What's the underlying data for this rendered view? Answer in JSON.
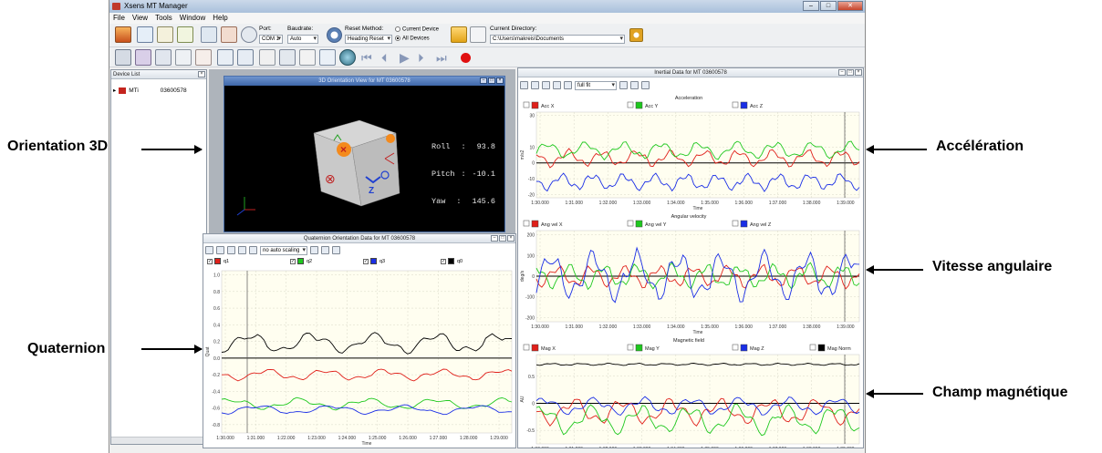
{
  "window": {
    "title": "Xsens MT Manager",
    "min": "–",
    "max": "□",
    "close": "✕"
  },
  "menu": [
    "File",
    "View",
    "Tools",
    "Window",
    "Help"
  ],
  "toolbar": {
    "port_label": "Port:",
    "port_value": "COM 1",
    "baud_label": "Baudrate:",
    "baud_value": "Auto",
    "reset_label": "Reset Method:",
    "reset_value": "Heading Reset",
    "radio_current": "Current Device",
    "radio_all": "All Devices",
    "dir_label": "Current Directory:",
    "dir_value": "C:\\Users\\makreis\\Documents"
  },
  "device_list": {
    "title": "Device List",
    "device_name": "MTi",
    "device_id": "03600578"
  },
  "orientation3d": {
    "title": "3D Orientation View for MT 03600578",
    "roll_label": "Roll",
    "roll": "93.8",
    "pitch_label": "Pitch",
    "pitch": "-10.1",
    "yaw_label": "Yaw",
    "yaw": "145.6"
  },
  "quaternion": {
    "title": "Quaternion Orientation Data for MT 03600578",
    "scaling": "no auto scaling",
    "series": [
      "q1",
      "q2",
      "q3",
      "q0"
    ],
    "ylabel": "Quat",
    "xlabel": "Time",
    "yticks": [
      "1.0",
      "0.8",
      "0.6",
      "0.4",
      "0.2",
      "0.0",
      "-0.2",
      "-0.4",
      "-0.6",
      "-0.8"
    ],
    "xticks": [
      "1:30.000",
      "1:31.000",
      "1:22.000",
      "1:23.000",
      "1:24.000",
      "1:25.000",
      "1:26.000",
      "1:27.000",
      "1:28.000",
      "1:29.000"
    ]
  },
  "inertial": {
    "title": "Inertial Data for MT 03600578",
    "scaling": "full fit",
    "acc": {
      "section": "Acceleration",
      "series": [
        "Acc X",
        "Acc Y",
        "Acc Z"
      ],
      "ylabel": "m/s2",
      "yticks": [
        "10",
        "0",
        "-10",
        "-20"
      ],
      "top_tick": "30"
    },
    "gyr": {
      "section": "Angular velocity",
      "series": [
        "Ang vel X",
        "Ang vel Y",
        "Ang vel Z"
      ],
      "ylabel": "deg/s",
      "yticks": [
        "200",
        "100",
        "0",
        "-100",
        "-200"
      ]
    },
    "mag": {
      "section": "Magnetic field",
      "series": [
        "Mag X",
        "Mag Y",
        "Mag Z",
        "Mag Norm"
      ],
      "ylabel": "AU",
      "yticks": [
        "0.5",
        "0",
        "-0.5"
      ]
    },
    "xlabel": "Time",
    "xticks": [
      "1:30.000",
      "1:31.000",
      "1:32.000",
      "1:33.000",
      "1:34.000",
      "1:35.000",
      "1:36.000",
      "1:37.000",
      "1:38.000",
      "1:39.000"
    ]
  },
  "annotations": {
    "orientation": "Orientation 3D",
    "quaternion": "Quaternion",
    "acceleration": "Accélération",
    "angular": "Vitesse angulaire",
    "magnetic": "Champ magnétique"
  },
  "colors": {
    "red": "#e0201a",
    "green": "#1ec81e",
    "blue": "#1a2ee6",
    "black": "#000000"
  }
}
